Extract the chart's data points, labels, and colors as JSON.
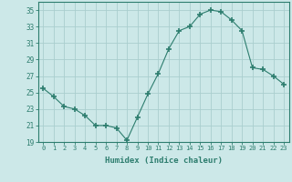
{
  "x": [
    0,
    1,
    2,
    3,
    4,
    5,
    6,
    7,
    8,
    9,
    10,
    11,
    12,
    13,
    14,
    15,
    16,
    17,
    18,
    19,
    20,
    21,
    22,
    23
  ],
  "y": [
    25.5,
    24.5,
    23.3,
    23.0,
    22.2,
    21.0,
    21.0,
    20.7,
    19.2,
    22.0,
    24.8,
    27.3,
    30.3,
    32.5,
    33.0,
    34.5,
    35.0,
    34.8,
    33.8,
    32.5,
    28.0,
    27.8,
    27.0,
    26.0
  ],
  "line_color": "#2d7d6e",
  "marker": "+",
  "marker_size": 4,
  "bg_color": "#cce8e8",
  "grid_color": "#aacece",
  "xlabel": "Humidex (Indice chaleur)",
  "ylim": [
    19,
    36
  ],
  "yticks": [
    19,
    21,
    23,
    25,
    27,
    29,
    31,
    33,
    35
  ],
  "xlim": [
    -0.5,
    23.5
  ],
  "xticks": [
    0,
    1,
    2,
    3,
    4,
    5,
    6,
    7,
    8,
    9,
    10,
    11,
    12,
    13,
    14,
    15,
    16,
    17,
    18,
    19,
    20,
    21,
    22,
    23
  ],
  "tick_color": "#2d7d6e",
  "label_color": "#2d7d6e",
  "spine_color": "#2d7d6e"
}
